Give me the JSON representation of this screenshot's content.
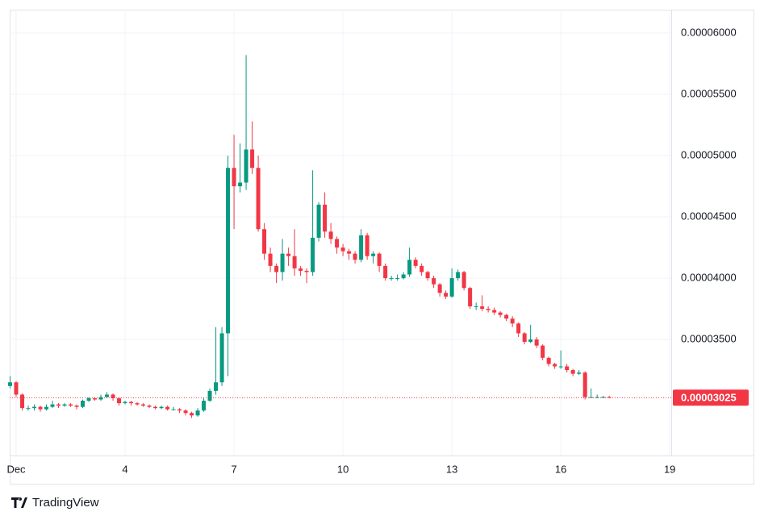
{
  "chart_data": {
    "type": "candlestick",
    "source": "TradingView",
    "up_color": "#089981",
    "down_color": "#f23645",
    "grid": true,
    "xlim": [
      0.822,
      19.04
    ],
    "xticks": [
      {
        "value": 1,
        "label": "Dec"
      },
      4,
      7,
      10,
      13,
      16,
      19
    ],
    "ylim": [
      2.553e-05,
      6.191e-05
    ],
    "yticks": [
      {
        "value": 3.5e-05,
        "label": "0.00003500"
      },
      {
        "value": 4e-05,
        "label": "0.00004000"
      },
      {
        "value": 4.5e-05,
        "label": "0.00004500"
      },
      {
        "value": 5e-05,
        "label": "0.00005000"
      },
      {
        "value": 5.5e-05,
        "label": "0.00005500"
      },
      {
        "value": 6e-05,
        "label": "0.00006000"
      }
    ],
    "last_price": {
      "value": 3.025e-05,
      "label": "0.00003025"
    },
    "x": [
      0.833,
      1,
      1.167,
      1.333,
      1.5,
      1.667,
      1.833,
      2,
      2.167,
      2.333,
      2.5,
      2.667,
      2.833,
      3,
      3.167,
      3.333,
      3.5,
      3.667,
      3.833,
      4,
      4.167,
      4.333,
      4.5,
      4.667,
      4.833,
      5,
      5.167,
      5.333,
      5.5,
      5.667,
      5.833,
      6,
      6.167,
      6.333,
      6.5,
      6.667,
      6.833,
      7,
      7.167,
      7.333,
      7.5,
      7.667,
      7.833,
      8,
      8.167,
      8.333,
      8.5,
      8.667,
      8.833,
      9,
      9.167,
      9.333,
      9.5,
      9.667,
      9.833,
      10,
      10.167,
      10.333,
      10.5,
      10.667,
      10.833,
      11,
      11.167,
      11.333,
      11.5,
      11.667,
      11.833,
      12,
      12.167,
      12.333,
      12.5,
      12.667,
      12.833,
      13,
      13.167,
      13.333,
      13.5,
      13.667,
      13.833,
      14,
      14.167,
      14.333,
      14.5,
      14.667,
      14.833,
      15,
      15.167,
      15.333,
      15.5,
      15.667,
      15.833,
      16,
      16.167,
      16.333,
      16.5,
      16.667,
      16.833,
      17,
      17.167,
      17.333
    ],
    "open": [
      3.12e-05,
      3.15e-05,
      3.05e-05,
      2.94e-05,
      2.94e-05,
      2.95e-05,
      2.93e-05,
      2.95e-05,
      2.97e-05,
      2.96e-05,
      2.97e-05,
      2.96e-05,
      2.95e-05,
      3e-05,
      3.02e-05,
      3.01e-05,
      3.03e-05,
      3.05e-05,
      3.02e-05,
      2.98e-05,
      2.99e-05,
      2.98e-05,
      2.97e-05,
      2.96e-05,
      2.95e-05,
      2.94e-05,
      2.95e-05,
      2.93e-05,
      2.93e-05,
      2.92e-05,
      2.9e-05,
      2.88e-05,
      2.92e-05,
      3e-05,
      3.08e-05,
      3.15e-05,
      3.55e-05,
      4.9e-05,
      4.75e-05,
      4.78e-05,
      5.05e-05,
      4.9e-05,
      4.4e-05,
      4.2e-05,
      4.1e-05,
      4.05e-05,
      4.2e-05,
      4.18e-05,
      4.08e-05,
      4.06e-05,
      4.05e-05,
      4.33e-05,
      4.6e-05,
      4.38e-05,
      4.32e-05,
      4.25e-05,
      4.22e-05,
      4.2e-05,
      4.15e-05,
      4.35e-05,
      4.18e-05,
      4.2e-05,
      4.1e-05,
      4e-05,
      4e-05,
      4e-05,
      4.03e-05,
      4.15e-05,
      4.1e-05,
      4.05e-05,
      4e-05,
      3.95e-05,
      3.88e-05,
      3.85e-05,
      4e-05,
      4.05e-05,
      3.92e-05,
      3.77e-05,
      3.77e-05,
      3.75e-05,
      3.74e-05,
      3.72e-05,
      3.7e-05,
      3.67e-05,
      3.63e-05,
      3.55e-05,
      3.48e-05,
      3.5e-05,
      3.45e-05,
      3.35e-05,
      3.3e-05,
      3.28e-05,
      3.28e-05,
      3.25e-05,
      3.22e-05,
      3.23e-05,
      3.03e-05,
      3.03e-05,
      3.03e-05,
      3.03e-05
    ],
    "high": [
      3.2e-05,
      3.16e-05,
      3.06e-05,
      2.96e-05,
      2.97e-05,
      2.96e-05,
      2.97e-05,
      3e-05,
      2.98e-05,
      2.98e-05,
      2.98e-05,
      2.97e-05,
      3.01e-05,
      3.03e-05,
      3.03e-05,
      3.05e-05,
      3.07e-05,
      3.06e-05,
      3.03e-05,
      3e-05,
      3e-05,
      2.99e-05,
      2.98e-05,
      2.97e-05,
      2.96e-05,
      2.96e-05,
      2.96e-05,
      2.95e-05,
      2.94e-05,
      2.93e-05,
      2.91e-05,
      2.94e-05,
      3.02e-05,
      3.1e-05,
      3.6e-05,
      3.6e-05,
      5e-05,
      5.17e-05,
      5.1e-05,
      5.82e-05,
      5.28e-05,
      5e-05,
      4.45e-05,
      4.25e-05,
      4.12e-05,
      4.32e-05,
      4.25e-05,
      4.4e-05,
      4.1e-05,
      4.08e-05,
      4.88e-05,
      4.62e-05,
      4.7e-05,
      4.45e-05,
      4.34e-05,
      4.28e-05,
      4.24e-05,
      4.22e-05,
      4.4e-05,
      4.37e-05,
      4.22e-05,
      4.21e-05,
      4.12e-05,
      4.02e-05,
      4.03e-05,
      4.05e-05,
      4.25e-05,
      4.17e-05,
      4.12e-05,
      4.06e-05,
      4.02e-05,
      3.96e-05,
      3.9e-05,
      4.08e-05,
      4.07e-05,
      4.06e-05,
      3.93e-05,
      3.8e-05,
      3.86e-05,
      3.77e-05,
      3.76e-05,
      3.73e-05,
      3.71e-05,
      3.69e-05,
      3.64e-05,
      3.56e-05,
      3.62e-05,
      3.52e-05,
      3.46e-05,
      3.36e-05,
      3.31e-05,
      3.41e-05,
      3.3e-05,
      3.26e-05,
      3.25e-05,
      3.24e-05,
      3.1e-05,
      3.05e-05,
      3.04e-05,
      3.04e-05
    ],
    "low": [
      3.1e-05,
      3.03e-05,
      2.92e-05,
      2.92e-05,
      2.92e-05,
      2.91e-05,
      2.92e-05,
      2.94e-05,
      2.94e-05,
      2.95e-05,
      2.95e-05,
      2.93e-05,
      2.94e-05,
      2.99e-05,
      3e-05,
      3e-05,
      3.02e-05,
      3e-05,
      2.96e-05,
      2.97e-05,
      2.96e-05,
      2.96e-05,
      2.95e-05,
      2.94e-05,
      2.93e-05,
      2.93e-05,
      2.92e-05,
      2.92e-05,
      2.9e-05,
      2.88e-05,
      2.86e-05,
      2.87e-05,
      2.91e-05,
      2.99e-05,
      3.05e-05,
      3.12e-05,
      3.2e-05,
      4.4e-05,
      4.7e-05,
      4.72e-05,
      4.85e-05,
      4.38e-05,
      4.15e-05,
      4.05e-05,
      3.96e-05,
      3.98e-05,
      4.1e-05,
      4.02e-05,
      4.02e-05,
      3.96e-05,
      4.02e-05,
      4.3e-05,
      4.33e-05,
      4.28e-05,
      4.2e-05,
      4.18e-05,
      4.15e-05,
      4.12e-05,
      4.13e-05,
      4.15e-05,
      4.12e-05,
      4.05e-05,
      3.98e-05,
      3.98e-05,
      3.98e-05,
      3.99e-05,
      4.01e-05,
      4.08e-05,
      4.02e-05,
      3.98e-05,
      3.92e-05,
      3.85e-05,
      3.83e-05,
      3.84e-05,
      3.98e-05,
      3.9e-05,
      3.75e-05,
      3.74e-05,
      3.73e-05,
      3.72e-05,
      3.7e-05,
      3.68e-05,
      3.65e-05,
      3.6e-05,
      3.52e-05,
      3.46e-05,
      3.47e-05,
      3.43e-05,
      3.33e-05,
      3.28e-05,
      3.26e-05,
      3.26e-05,
      3.23e-05,
      3.2e-05,
      3.21e-05,
      3.01e-05,
      3.02e-05,
      3.02e-05,
      3.02e-05,
      3.02e-05
    ],
    "close": [
      3.15e-05,
      3.05e-05,
      2.94e-05,
      2.94e-05,
      2.95e-05,
      2.93e-05,
      2.95e-05,
      2.97e-05,
      2.96e-05,
      2.97e-05,
      2.96e-05,
      2.95e-05,
      3e-05,
      3.02e-05,
      3.01e-05,
      3.03e-05,
      3.05e-05,
      3.02e-05,
      2.98e-05,
      2.99e-05,
      2.98e-05,
      2.97e-05,
      2.96e-05,
      2.95e-05,
      2.94e-05,
      2.95e-05,
      2.93e-05,
      2.93e-05,
      2.92e-05,
      2.9e-05,
      2.88e-05,
      2.92e-05,
      3e-05,
      3.08e-05,
      3.15e-05,
      3.55e-05,
      4.9e-05,
      4.75e-05,
      4.78e-05,
      5.05e-05,
      4.9e-05,
      4.4e-05,
      4.2e-05,
      4.1e-05,
      4.05e-05,
      4.2e-05,
      4.18e-05,
      4.08e-05,
      4.06e-05,
      4.05e-05,
      4.33e-05,
      4.6e-05,
      4.38e-05,
      4.32e-05,
      4.25e-05,
      4.22e-05,
      4.2e-05,
      4.15e-05,
      4.35e-05,
      4.18e-05,
      4.2e-05,
      4.1e-05,
      4e-05,
      4e-05,
      4e-05,
      4.03e-05,
      4.15e-05,
      4.1e-05,
      4.05e-05,
      4e-05,
      3.95e-05,
      3.88e-05,
      3.85e-05,
      4e-05,
      4.05e-05,
      3.92e-05,
      3.77e-05,
      3.77e-05,
      3.75e-05,
      3.74e-05,
      3.72e-05,
      3.7e-05,
      3.67e-05,
      3.63e-05,
      3.55e-05,
      3.48e-05,
      3.5e-05,
      3.45e-05,
      3.35e-05,
      3.3e-05,
      3.28e-05,
      3.28e-05,
      3.25e-05,
      3.22e-05,
      3.23e-05,
      3.03e-05,
      3.03e-05,
      3.03e-05,
      3.03e-05,
      3.025e-05
    ]
  }
}
